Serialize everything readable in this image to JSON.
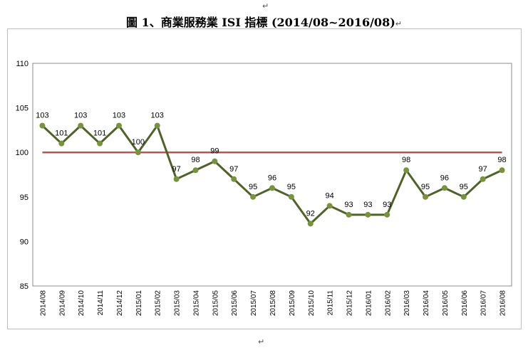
{
  "document": {
    "top_mark": "↵",
    "title_mark": "↵",
    "bottom_mark": "↵"
  },
  "chart_data": {
    "type": "line",
    "title": "圖 1、商業服務業 ISI 指標 (2014/08~2016/08)",
    "xlabel": "",
    "ylabel": "",
    "ylim": [
      85,
      110
    ],
    "yticks": [
      85,
      90,
      95,
      100,
      105,
      110
    ],
    "grid": false,
    "legend": "none",
    "categories": [
      "2014/08",
      "2014/09",
      "2014/10",
      "2014/11",
      "2014/12",
      "2015/01",
      "2015/02",
      "2015/03",
      "2015/04",
      "2015/05",
      "2015/06",
      "2015/07",
      "2015/08",
      "2015/09",
      "2015/10",
      "2015/11",
      "2015/12",
      "2016/01",
      "2016/02",
      "2016/03",
      "2016/04",
      "2016/05",
      "2016/06",
      "2016/07",
      "2016/08"
    ],
    "series": [
      {
        "values": [
          103,
          101,
          103,
          101,
          103,
          100,
          103,
          97,
          98,
          99,
          97,
          95,
          96,
          95,
          92,
          94,
          93,
          93,
          93,
          98,
          95,
          96,
          95,
          97,
          98
        ],
        "color": "#4f6228",
        "marker_color": "#77933c"
      }
    ],
    "reference_line": {
      "value": 100,
      "color": "#c0504d"
    }
  }
}
